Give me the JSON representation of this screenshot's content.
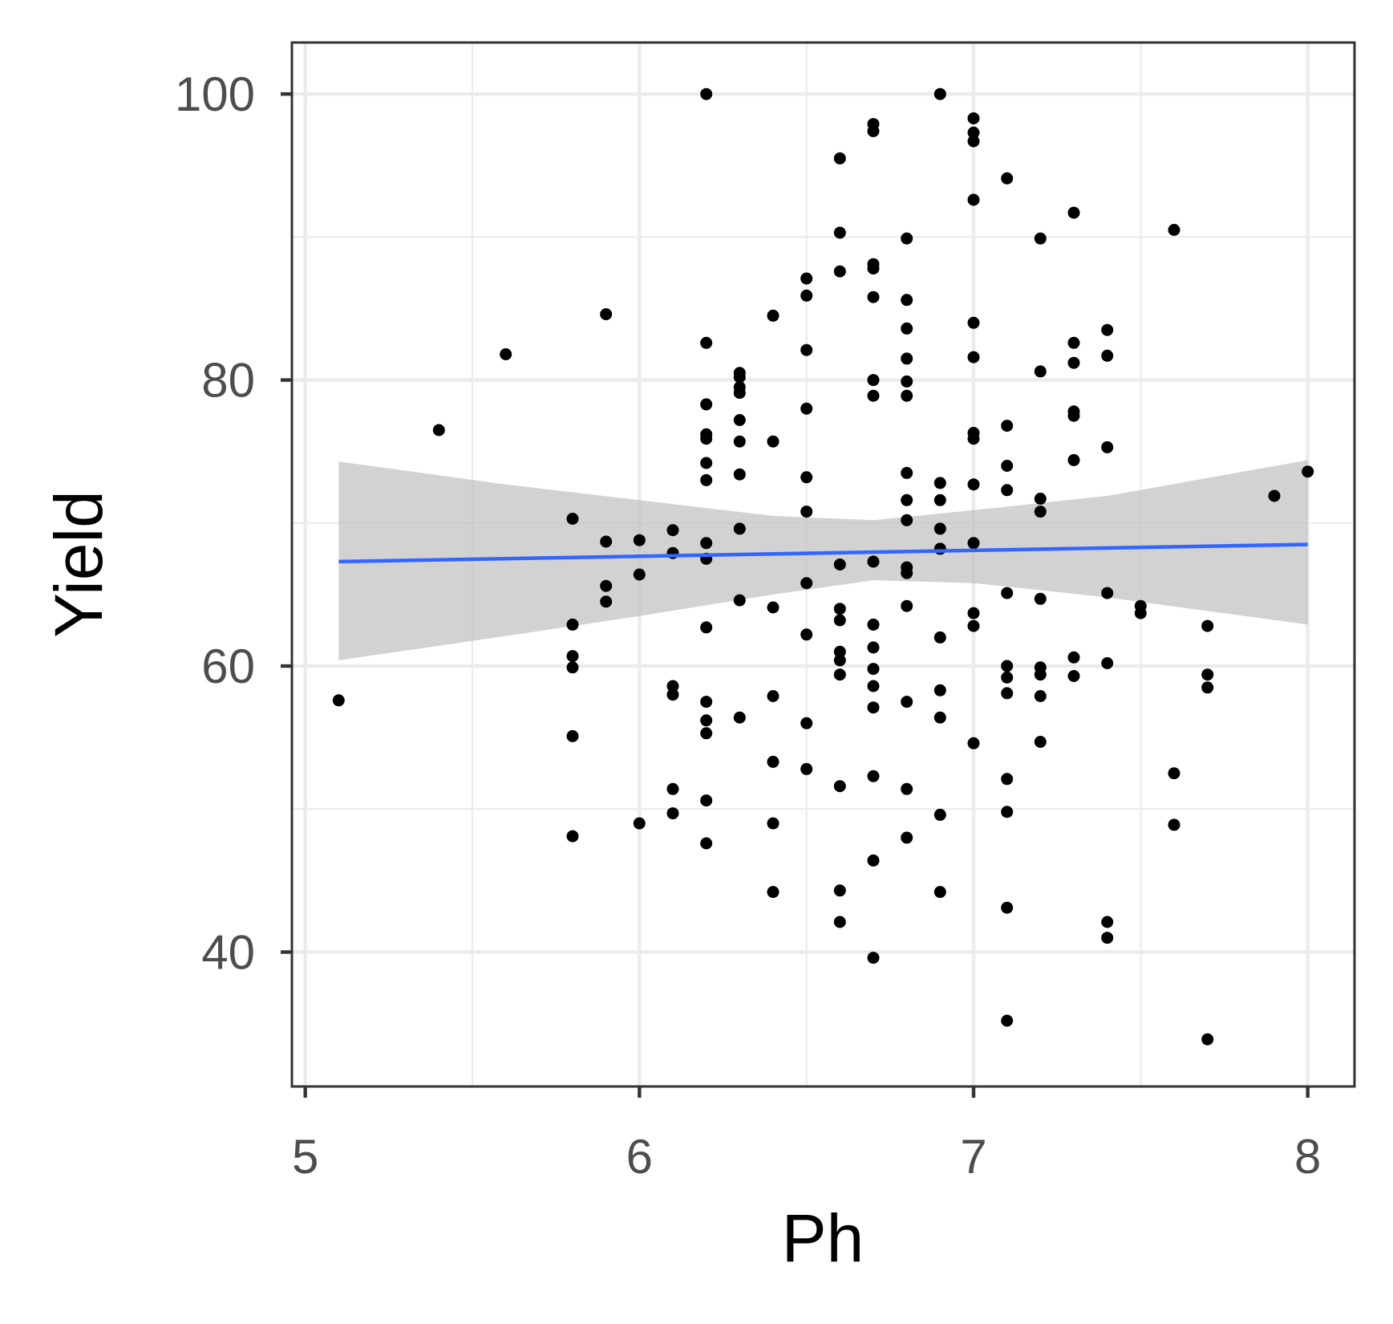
{
  "chart_data": {
    "type": "scatter",
    "xlabel": "Ph",
    "ylabel": "Yield",
    "xlim": [
      4.96,
      8.14
    ],
    "ylim": [
      30.6,
      103.6
    ],
    "x_ticks": [
      5,
      6,
      7,
      8
    ],
    "x_tick_labels": [
      "5",
      "6",
      "7",
      "8"
    ],
    "y_ticks": [
      40,
      60,
      80,
      100
    ],
    "y_tick_labels": [
      "40",
      "60",
      "80",
      "100"
    ],
    "x_minor_grid": [
      5.5,
      6.5,
      7.5
    ],
    "y_minor_grid": [
      50,
      70,
      90
    ],
    "grid": true,
    "points": [
      [
        5.1,
        57.6
      ],
      [
        5.4,
        76.5
      ],
      [
        5.6,
        81.8
      ],
      [
        5.8,
        70.3
      ],
      [
        5.8,
        62.9
      ],
      [
        5.8,
        60.7
      ],
      [
        5.8,
        59.9
      ],
      [
        5.8,
        55.1
      ],
      [
        5.8,
        48.1
      ],
      [
        5.9,
        84.6
      ],
      [
        5.9,
        68.7
      ],
      [
        5.9,
        65.6
      ],
      [
        5.9,
        64.5
      ],
      [
        6.0,
        68.8
      ],
      [
        6.0,
        66.4
      ],
      [
        6.0,
        49.0
      ],
      [
        6.1,
        69.5
      ],
      [
        6.1,
        67.9
      ],
      [
        6.1,
        58.6
      ],
      [
        6.1,
        58.0
      ],
      [
        6.1,
        51.4
      ],
      [
        6.1,
        49.7
      ],
      [
        6.2,
        100.0
      ],
      [
        6.2,
        82.6
      ],
      [
        6.2,
        78.3
      ],
      [
        6.2,
        76.2
      ],
      [
        6.2,
        75.9
      ],
      [
        6.2,
        74.2
      ],
      [
        6.2,
        73.0
      ],
      [
        6.2,
        68.6
      ],
      [
        6.2,
        67.5
      ],
      [
        6.2,
        62.7
      ],
      [
        6.2,
        57.5
      ],
      [
        6.2,
        56.2
      ],
      [
        6.2,
        55.3
      ],
      [
        6.2,
        50.6
      ],
      [
        6.2,
        47.6
      ],
      [
        6.3,
        80.5
      ],
      [
        6.3,
        80.2
      ],
      [
        6.3,
        79.5
      ],
      [
        6.3,
        79.1
      ],
      [
        6.3,
        77.2
      ],
      [
        6.3,
        75.7
      ],
      [
        6.3,
        73.4
      ],
      [
        6.3,
        69.6
      ],
      [
        6.3,
        64.6
      ],
      [
        6.3,
        56.4
      ],
      [
        6.4,
        84.5
      ],
      [
        6.4,
        75.7
      ],
      [
        6.4,
        64.1
      ],
      [
        6.4,
        57.9
      ],
      [
        6.4,
        53.3
      ],
      [
        6.4,
        49.0
      ],
      [
        6.4,
        44.2
      ],
      [
        6.5,
        87.1
      ],
      [
        6.5,
        85.9
      ],
      [
        6.5,
        82.1
      ],
      [
        6.5,
        78.0
      ],
      [
        6.5,
        73.2
      ],
      [
        6.5,
        70.8
      ],
      [
        6.5,
        65.8
      ],
      [
        6.5,
        62.2
      ],
      [
        6.5,
        56.0
      ],
      [
        6.5,
        52.8
      ],
      [
        6.6,
        95.5
      ],
      [
        6.6,
        90.3
      ],
      [
        6.6,
        87.6
      ],
      [
        6.6,
        67.1
      ],
      [
        6.6,
        64.0
      ],
      [
        6.6,
        63.2
      ],
      [
        6.6,
        61.0
      ],
      [
        6.6,
        60.4
      ],
      [
        6.6,
        59.4
      ],
      [
        6.6,
        51.6
      ],
      [
        6.6,
        44.3
      ],
      [
        6.6,
        42.1
      ],
      [
        6.7,
        97.9
      ],
      [
        6.7,
        97.4
      ],
      [
        6.7,
        88.1
      ],
      [
        6.7,
        87.8
      ],
      [
        6.7,
        85.8
      ],
      [
        6.7,
        80.0
      ],
      [
        6.7,
        78.9
      ],
      [
        6.7,
        67.3
      ],
      [
        6.7,
        62.9
      ],
      [
        6.7,
        61.3
      ],
      [
        6.7,
        59.8
      ],
      [
        6.7,
        58.6
      ],
      [
        6.7,
        57.1
      ],
      [
        6.7,
        52.3
      ],
      [
        6.7,
        46.4
      ],
      [
        6.7,
        39.6
      ],
      [
        6.8,
        89.9
      ],
      [
        6.8,
        85.6
      ],
      [
        6.8,
        83.6
      ],
      [
        6.8,
        81.5
      ],
      [
        6.8,
        79.9
      ],
      [
        6.8,
        78.9
      ],
      [
        6.8,
        73.5
      ],
      [
        6.8,
        71.6
      ],
      [
        6.8,
        70.2
      ],
      [
        6.8,
        66.9
      ],
      [
        6.8,
        66.5
      ],
      [
        6.8,
        64.2
      ],
      [
        6.8,
        57.5
      ],
      [
        6.8,
        51.4
      ],
      [
        6.8,
        48.0
      ],
      [
        6.9,
        100.0
      ],
      [
        6.9,
        72.8
      ],
      [
        6.9,
        71.6
      ],
      [
        6.9,
        69.6
      ],
      [
        6.9,
        68.2
      ],
      [
        6.9,
        62.0
      ],
      [
        6.9,
        58.3
      ],
      [
        6.9,
        56.4
      ],
      [
        6.9,
        49.6
      ],
      [
        6.9,
        44.2
      ],
      [
        7.0,
        98.3
      ],
      [
        7.0,
        97.3
      ],
      [
        7.0,
        96.7
      ],
      [
        7.0,
        92.6
      ],
      [
        7.0,
        84.0
      ],
      [
        7.0,
        81.6
      ],
      [
        7.0,
        76.3
      ],
      [
        7.0,
        75.9
      ],
      [
        7.0,
        72.7
      ],
      [
        7.0,
        68.6
      ],
      [
        7.0,
        63.7
      ],
      [
        7.0,
        62.8
      ],
      [
        7.0,
        54.6
      ],
      [
        7.1,
        94.1
      ],
      [
        7.1,
        76.8
      ],
      [
        7.1,
        74.0
      ],
      [
        7.1,
        72.3
      ],
      [
        7.1,
        65.1
      ],
      [
        7.1,
        60.0
      ],
      [
        7.1,
        59.2
      ],
      [
        7.1,
        58.1
      ],
      [
        7.1,
        52.1
      ],
      [
        7.1,
        49.8
      ],
      [
        7.1,
        43.1
      ],
      [
        7.1,
        35.2
      ],
      [
        7.2,
        89.9
      ],
      [
        7.2,
        80.6
      ],
      [
        7.2,
        71.7
      ],
      [
        7.2,
        70.8
      ],
      [
        7.2,
        64.7
      ],
      [
        7.2,
        59.9
      ],
      [
        7.2,
        59.4
      ],
      [
        7.2,
        57.9
      ],
      [
        7.2,
        54.7
      ],
      [
        7.3,
        91.7
      ],
      [
        7.3,
        82.6
      ],
      [
        7.3,
        81.2
      ],
      [
        7.3,
        77.8
      ],
      [
        7.3,
        77.5
      ],
      [
        7.3,
        74.4
      ],
      [
        7.3,
        60.6
      ],
      [
        7.3,
        59.3
      ],
      [
        7.4,
        83.5
      ],
      [
        7.4,
        81.7
      ],
      [
        7.4,
        75.3
      ],
      [
        7.4,
        65.1
      ],
      [
        7.4,
        60.2
      ],
      [
        7.4,
        42.1
      ],
      [
        7.4,
        41.0
      ],
      [
        7.5,
        64.2
      ],
      [
        7.5,
        63.7
      ],
      [
        7.6,
        90.5
      ],
      [
        7.6,
        52.5
      ],
      [
        7.6,
        48.9
      ],
      [
        7.7,
        62.8
      ],
      [
        7.7,
        59.4
      ],
      [
        7.7,
        58.5
      ],
      [
        7.7,
        33.9
      ],
      [
        7.9,
        71.9
      ],
      [
        8.0,
        73.6
      ]
    ],
    "point_color": "#000000",
    "trend_line": {
      "method": "linear",
      "color": "#3366FF",
      "x": [
        5.1,
        8.0
      ],
      "y": [
        67.3,
        68.5
      ]
    },
    "confidence_band": {
      "color": "#bfbfbf",
      "x": [
        5.1,
        5.6,
        6.0,
        6.4,
        6.7,
        7.0,
        7.4,
        8.0
      ],
      "lower": [
        60.4,
        62.1,
        63.5,
        65.0,
        66.0,
        65.8,
        64.8,
        62.9
      ],
      "upper": [
        74.3,
        72.7,
        71.6,
        70.5,
        70.2,
        70.9,
        71.9,
        74.4
      ]
    }
  }
}
